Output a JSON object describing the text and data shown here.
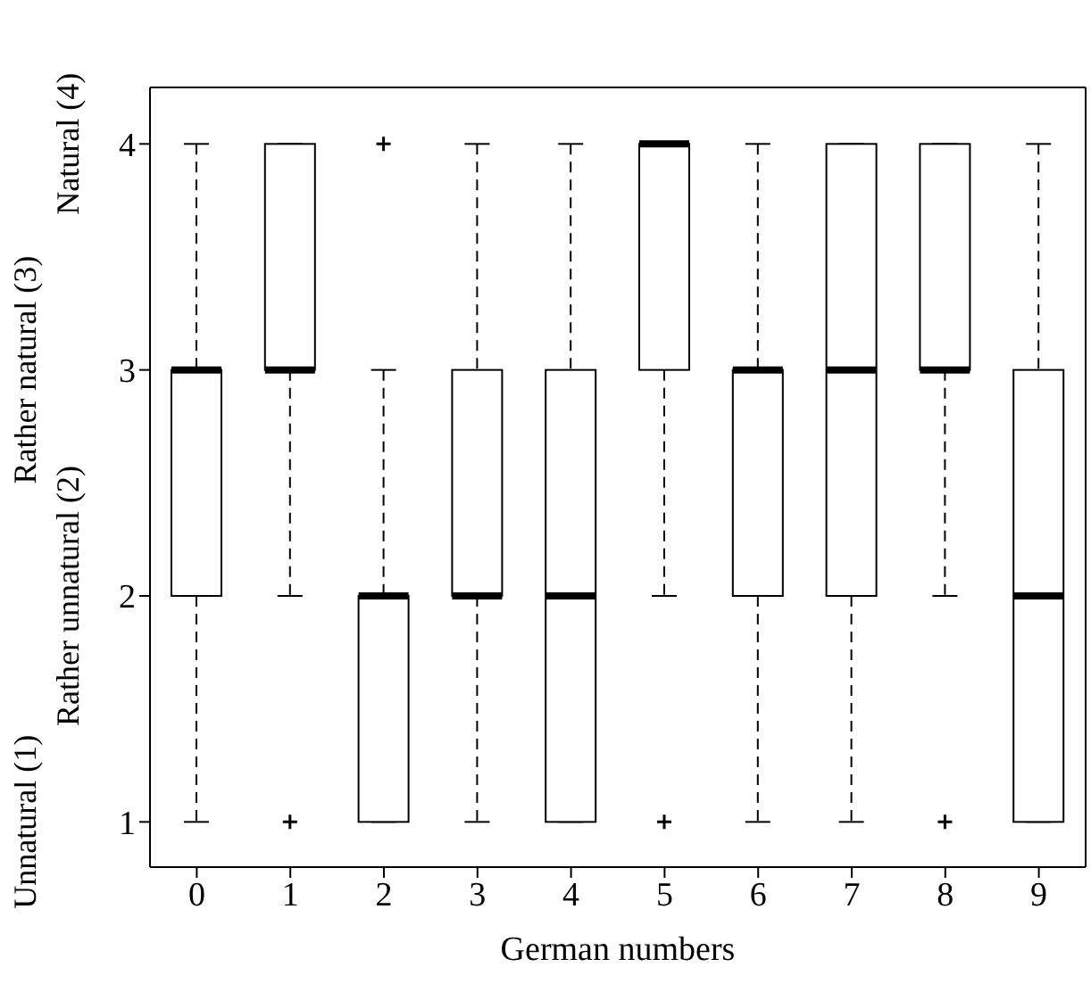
{
  "chart_data": {
    "type": "box",
    "xlabel": "German numbers",
    "categories": [
      "0",
      "1",
      "2",
      "3",
      "4",
      "5",
      "6",
      "7",
      "8",
      "9"
    ],
    "boxes": [
      {
        "low": 1,
        "q1": 2,
        "median": 3,
        "q3": 3,
        "high": 4
      },
      {
        "low": 2,
        "q1": 3,
        "median": 3,
        "q3": 4,
        "high": 4,
        "outliers": [
          1
        ]
      },
      {
        "low": 1,
        "q1": 1,
        "median": 2,
        "q3": 2,
        "high": 3,
        "outliers": [
          4
        ]
      },
      {
        "low": 1,
        "q1": 2,
        "median": 2,
        "q3": 3,
        "high": 4
      },
      {
        "low": 1,
        "q1": 1,
        "median": 2,
        "q3": 3,
        "high": 4
      },
      {
        "low": 2,
        "q1": 3,
        "median": 4,
        "q3": 4,
        "high": 4,
        "outliers": [
          1
        ]
      },
      {
        "low": 1,
        "q1": 2,
        "median": 3,
        "q3": 3,
        "high": 4
      },
      {
        "low": 1,
        "q1": 2,
        "median": 3,
        "q3": 4,
        "high": 4
      },
      {
        "low": 2,
        "q1": 3,
        "median": 3,
        "q3": 4,
        "high": 4,
        "outliers": [
          1
        ]
      },
      {
        "low": 1,
        "q1": 1,
        "median": 2,
        "q3": 3,
        "high": 4
      }
    ],
    "color": "#000000",
    "ylim": [
      0.8,
      4.25
    ],
    "yticks": [
      1,
      2,
      3,
      4
    ],
    "annotations": [
      "Unnatural (1)",
      "Rather unnatural (2)",
      "Rather natural (3)",
      "Natural (4)"
    ]
  }
}
